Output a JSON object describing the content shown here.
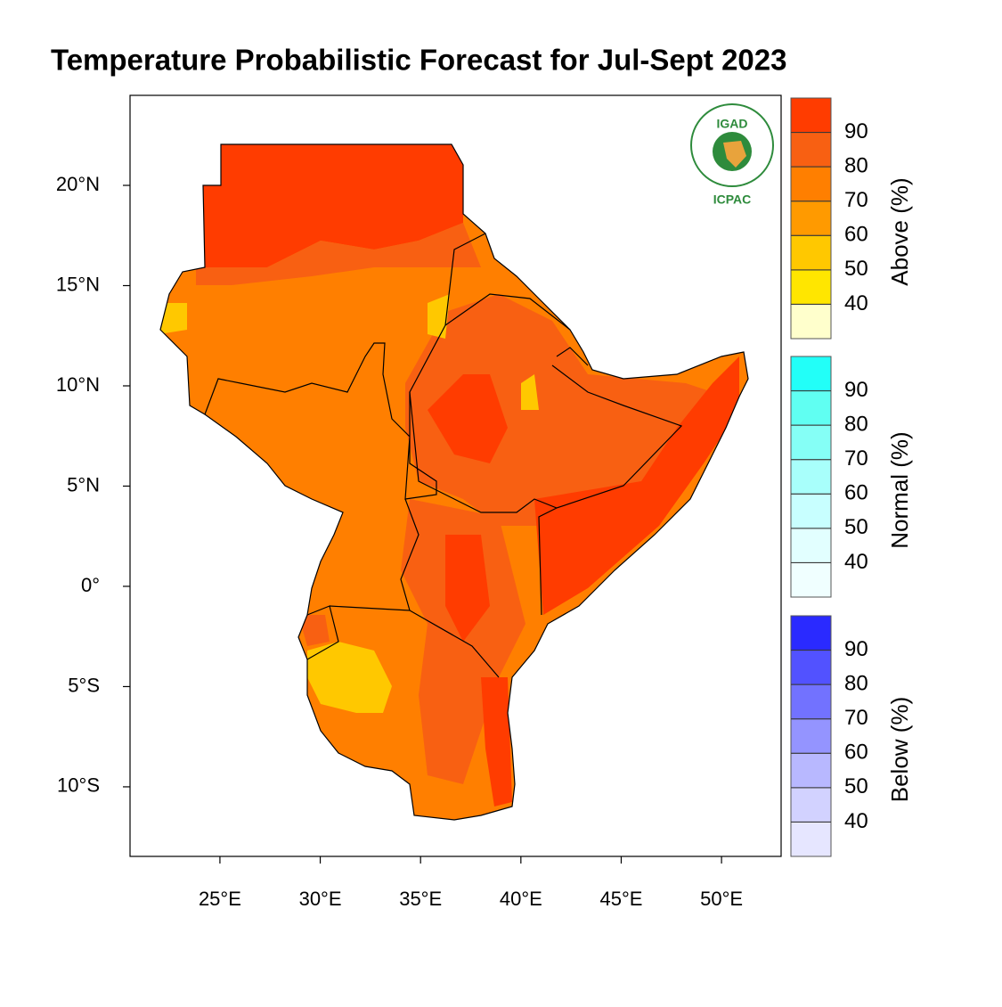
{
  "chart_data": {
    "type": "map",
    "title": "Temperature Probabilistic Forecast for Jul-Sept 2023",
    "xlim": [
      20.52,
      52.97
    ],
    "ylim": [
      -13.47,
      24.49
    ],
    "xticks": [
      {
        "value": 25,
        "label": "25°E"
      },
      {
        "value": 30,
        "label": "30°E"
      },
      {
        "value": 35,
        "label": "35°E"
      },
      {
        "value": 40,
        "label": "40°E"
      },
      {
        "value": 45,
        "label": "45°E"
      },
      {
        "value": 50,
        "label": "50°E"
      }
    ],
    "yticks": [
      {
        "value": 20,
        "label": "20°N"
      },
      {
        "value": 15,
        "label": "15°N"
      },
      {
        "value": 10,
        "label": "10°N"
      },
      {
        "value": 5,
        "label": "5°N"
      },
      {
        "value": 0,
        "label": "0°"
      },
      {
        "value": -5,
        "label": "5°S"
      },
      {
        "value": -10,
        "label": "10°S"
      }
    ],
    "legend": [
      {
        "name": "Above (%)",
        "lim": [
          30,
          100
        ],
        "ticks": [
          40,
          50,
          60,
          70,
          80,
          90
        ],
        "colors": [
          "#ffffcc",
          "#ffe600",
          "#ffc800",
          "#ff9a00",
          "#ff7f00",
          "#f86012",
          "#ff3c00"
        ]
      },
      {
        "name": "Normal (%)",
        "lim": [
          30,
          100
        ],
        "ticks": [
          40,
          50,
          60,
          70,
          80,
          90
        ],
        "colors": [
          "#f0ffff",
          "#e2ffff",
          "#c8ffff",
          "#a8fffb",
          "#85fff6",
          "#60fff2",
          "#22fff8"
        ]
      },
      {
        "name": "Below (%)",
        "lim": [
          30,
          100
        ],
        "ticks": [
          40,
          50,
          60,
          70,
          80,
          90
        ],
        "colors": [
          "#e6e6ff",
          "#d2d2ff",
          "#b8b8ff",
          "#9494ff",
          "#7272ff",
          "#5252ff",
          "#2a2aff"
        ]
      }
    ],
    "logo": {
      "top": "IGAD",
      "bottom": "ICPAC"
    }
  }
}
